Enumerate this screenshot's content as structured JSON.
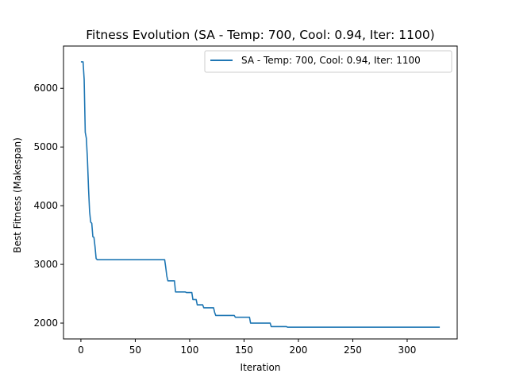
{
  "chart_data": {
    "type": "line",
    "title": "Fitness Evolution (SA - Temp: 700, Cool: 0.94, Iter: 1100)",
    "xlabel": "Iteration",
    "ylabel": "Best Fitness (Makespan)",
    "xlim": [
      -16,
      346
    ],
    "ylim": [
      1730,
      6720
    ],
    "x_ticks": [
      0,
      50,
      100,
      150,
      200,
      250,
      300
    ],
    "y_ticks": [
      2000,
      3000,
      4000,
      5000,
      6000
    ],
    "grid": false,
    "legend_position": "top-right",
    "series": [
      {
        "name": "SA - Temp: 700, Cool: 0.94, Iter: 1100",
        "color": "#1f77b4",
        "points": [
          [
            0,
            6450
          ],
          [
            2,
            6450
          ],
          [
            3,
            6150
          ],
          [
            4,
            5250
          ],
          [
            5,
            5150
          ],
          [
            6,
            4800
          ],
          [
            7,
            4300
          ],
          [
            8,
            3900
          ],
          [
            9,
            3720
          ],
          [
            10,
            3700
          ],
          [
            11,
            3470
          ],
          [
            12,
            3460
          ],
          [
            13,
            3300
          ],
          [
            14,
            3100
          ],
          [
            15,
            3080
          ],
          [
            77,
            3080
          ],
          [
            78,
            2950
          ],
          [
            79,
            2800
          ],
          [
            80,
            2720
          ],
          [
            86,
            2720
          ],
          [
            87,
            2530
          ],
          [
            96,
            2530
          ],
          [
            97,
            2520
          ],
          [
            102,
            2520
          ],
          [
            103,
            2400
          ],
          [
            106,
            2400
          ],
          [
            107,
            2310
          ],
          [
            112,
            2310
          ],
          [
            113,
            2260
          ],
          [
            122,
            2260
          ],
          [
            123,
            2180
          ],
          [
            124,
            2130
          ],
          [
            141,
            2130
          ],
          [
            142,
            2100
          ],
          [
            155,
            2100
          ],
          [
            156,
            2000
          ],
          [
            174,
            2000
          ],
          [
            175,
            1940
          ],
          [
            189,
            1940
          ],
          [
            190,
            1930
          ],
          [
            330,
            1930
          ]
        ]
      }
    ]
  }
}
